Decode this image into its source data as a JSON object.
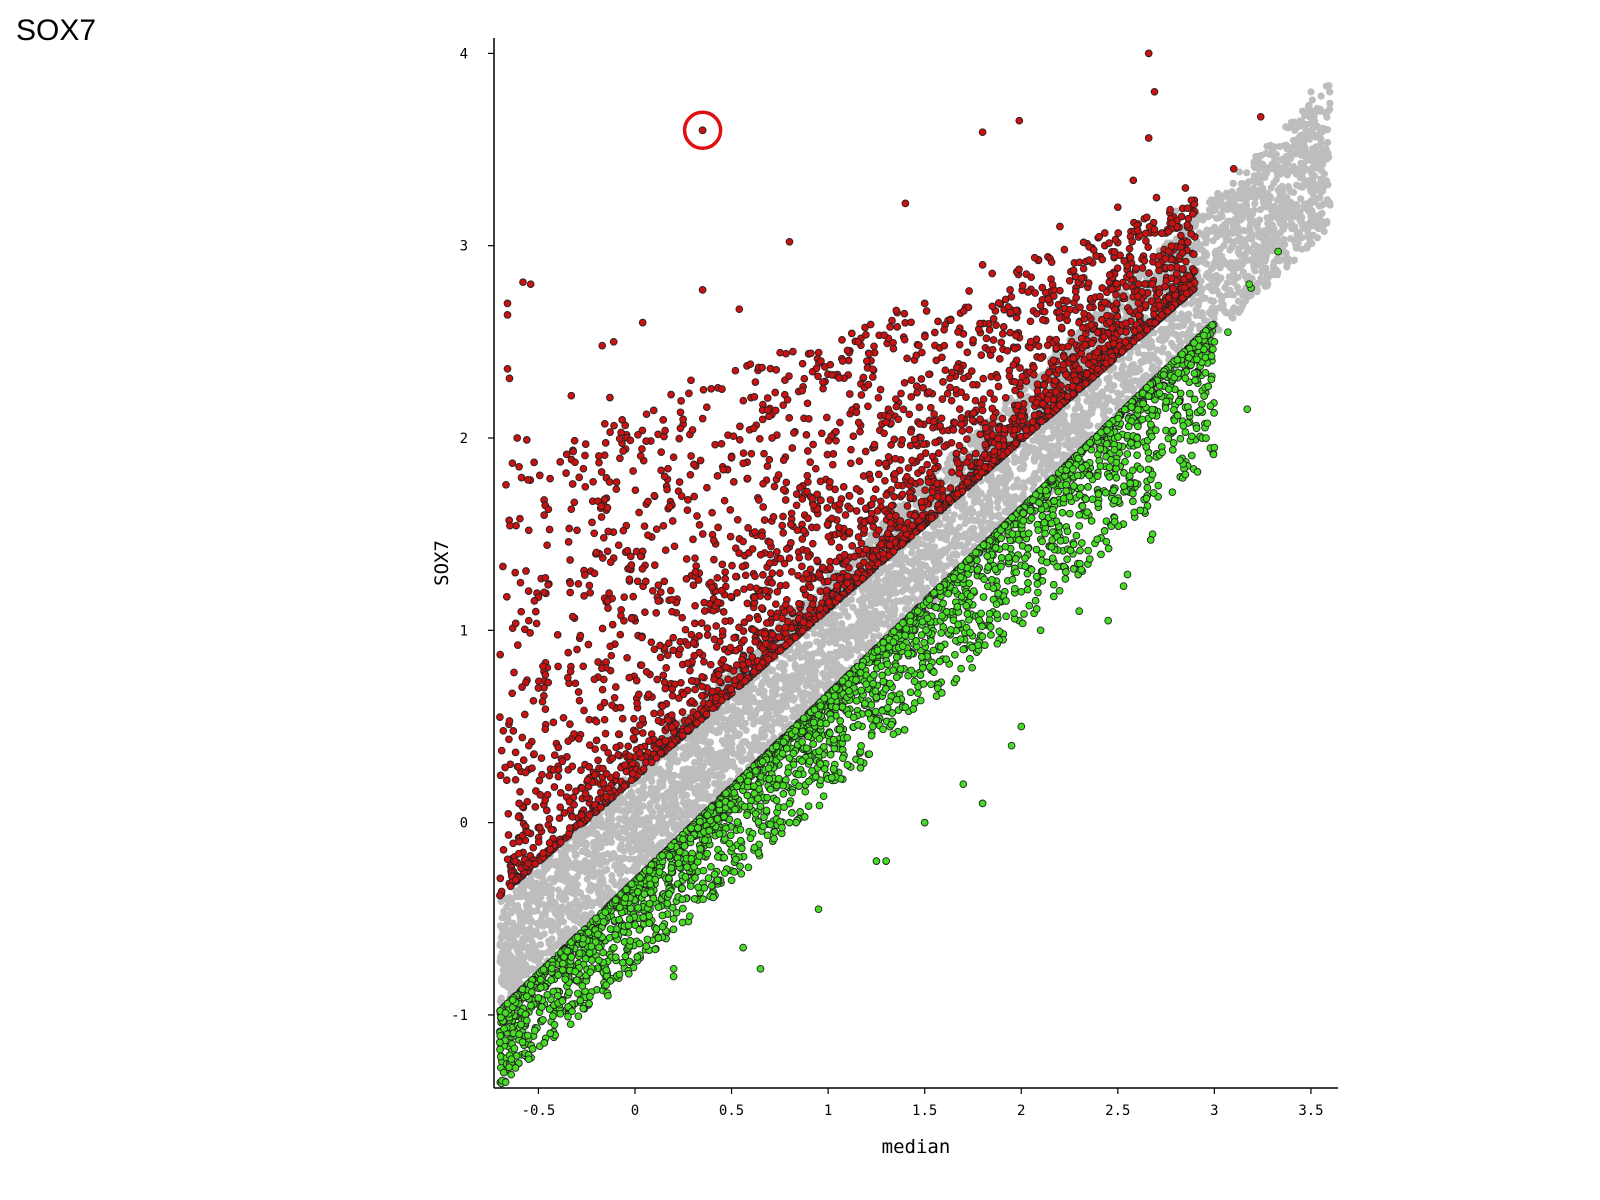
{
  "page": {
    "label": "SOX7"
  },
  "chart_data": {
    "type": "scatter",
    "title": "",
    "xlabel": "median",
    "ylabel": "SOX7",
    "xlim": [
      -0.73,
      3.64
    ],
    "ylim": [
      -1.38,
      4.08
    ],
    "x_ticks": [
      -0.5,
      0,
      0.5,
      1,
      1.5,
      2,
      2.5,
      3,
      3.5
    ],
    "x_tick_labels": [
      "-0.5",
      "0",
      "0.5",
      "1",
      "1.5",
      "2",
      "2.5",
      "3",
      "3.5"
    ],
    "y_ticks": [
      -1,
      0,
      1,
      2,
      3,
      4
    ],
    "y_tick_labels": [
      "-1",
      "0",
      "1",
      "2",
      "3",
      "4"
    ],
    "grid": false,
    "legend": "none",
    "colors": {
      "up": "#cc1111",
      "down": "#44dd22",
      "neutral": "#bdbdbd",
      "edge": "#222222",
      "highlight": "#e01010"
    },
    "series": [
      {
        "color_role": "neutral",
        "band": {
          "x_start": -0.7,
          "x_end": 3.6,
          "lower_at_start": -1.0,
          "upper_at_start": -0.4,
          "lower_at_end": 3.1,
          "upper_at_end": 3.85
        },
        "points": [
          [
            3.5,
            3.8
          ],
          [
            3.58,
            3.83
          ],
          [
            3.3,
            3.5
          ],
          [
            3.45,
            3.47
          ],
          [
            3.2,
            3.28
          ],
          [
            3.25,
            3.25
          ],
          [
            3.3,
            3.4
          ],
          [
            3.1,
            3.1
          ],
          [
            3.15,
            3.0
          ],
          [
            2.95,
            2.95
          ],
          [
            2.9,
            3.1
          ],
          [
            2.8,
            3.18
          ]
        ]
      },
      {
        "color_role": "up",
        "points": [
          [
            2.66,
            4.0
          ],
          [
            2.69,
            3.8
          ],
          [
            0.35,
            3.6
          ],
          [
            1.8,
            3.59
          ],
          [
            1.99,
            3.65
          ],
          [
            2.66,
            3.56
          ],
          [
            3.24,
            3.67
          ],
          [
            2.58,
            3.34
          ],
          [
            1.4,
            3.22
          ],
          [
            0.8,
            3.02
          ],
          [
            0.35,
            2.77
          ],
          [
            -0.58,
            2.81
          ],
          [
            -0.54,
            2.8
          ],
          [
            -0.66,
            2.7
          ],
          [
            -0.66,
            2.64
          ],
          [
            0.04,
            2.6
          ],
          [
            0.54,
            2.67
          ],
          [
            -0.17,
            2.48
          ],
          [
            -0.11,
            2.5
          ],
          [
            -0.66,
            2.36
          ],
          [
            -0.65,
            2.31
          ],
          [
            0.29,
            2.3
          ],
          [
            0.52,
            2.35
          ],
          [
            -0.33,
            2.22
          ],
          [
            -0.13,
            2.21
          ],
          [
            -0.61,
            2.0
          ],
          [
            -0.56,
            1.99
          ],
          [
            -0.32,
            1.93
          ],
          [
            0.71,
            2.0
          ],
          [
            0.2,
            1.9
          ],
          [
            -0.6,
            1.85
          ],
          [
            -0.33,
            1.63
          ],
          [
            -0.55,
            1.52
          ],
          [
            -0.62,
            1.3
          ],
          [
            -0.3,
            1.52
          ],
          [
            0.1,
            1.7
          ],
          [
            0.5,
            1.9
          ],
          [
            0.9,
            2.1
          ],
          [
            1.2,
            2.4
          ],
          [
            1.5,
            2.7
          ],
          [
            1.8,
            2.9
          ],
          [
            2.2,
            3.1
          ],
          [
            2.5,
            3.2
          ],
          [
            2.7,
            3.25
          ],
          [
            3.1,
            3.4
          ],
          [
            2.85,
            3.3
          ],
          [
            -0.55,
            0.4
          ],
          [
            -0.6,
            0.1
          ],
          [
            -0.62,
            -0.2
          ],
          [
            -0.5,
            0.7
          ],
          [
            -0.3,
            0.9
          ]
        ],
        "band": {
          "x_start": -0.7,
          "x_end": 2.9,
          "lower_at_start": -0.38,
          "upper_at_start": 1.9,
          "lower_at_end": 2.78,
          "upper_at_end": 3.25
        }
      },
      {
        "color_role": "down",
        "points": [
          [
            3.33,
            2.97
          ],
          [
            3.19,
            2.78
          ],
          [
            3.18,
            2.8
          ],
          [
            3.07,
            2.55
          ],
          [
            3.0,
            2.5
          ],
          [
            3.17,
            2.15
          ],
          [
            3.0,
            1.95
          ],
          [
            2.68,
            1.81
          ],
          [
            2.85,
            1.81
          ],
          [
            2.68,
            1.5
          ],
          [
            2.67,
            1.47
          ],
          [
            2.55,
            1.29
          ],
          [
            2.53,
            1.23
          ],
          [
            2.45,
            1.05
          ],
          [
            2.3,
            1.1
          ],
          [
            2.1,
            1.0
          ],
          [
            2.0,
            0.5
          ],
          [
            1.95,
            0.4
          ],
          [
            1.8,
            0.1
          ],
          [
            1.7,
            0.2
          ],
          [
            1.5,
            0.0
          ],
          [
            1.3,
            -0.2
          ],
          [
            1.25,
            -0.2
          ],
          [
            0.95,
            -0.45
          ],
          [
            0.65,
            -0.76
          ],
          [
            0.56,
            -0.65
          ],
          [
            0.2,
            -0.76
          ],
          [
            0.2,
            -0.8
          ],
          [
            -0.08,
            -0.79
          ],
          [
            -0.14,
            -0.9
          ],
          [
            -0.64,
            -1.23
          ],
          [
            -0.68,
            -1.3
          ],
          [
            -0.67,
            -1.35
          ],
          [
            -0.55,
            -1.23
          ],
          [
            2.9,
            2.3
          ],
          [
            2.6,
            2.0
          ],
          [
            2.3,
            1.6
          ],
          [
            2.0,
            1.2
          ],
          [
            1.7,
            0.9
          ],
          [
            1.4,
            0.6
          ],
          [
            1.1,
            0.3
          ],
          [
            0.8,
            0.0
          ],
          [
            0.5,
            -0.3
          ],
          [
            0.2,
            -0.5
          ],
          [
            -0.1,
            -0.7
          ],
          [
            -0.4,
            -0.9
          ],
          [
            -0.6,
            -1.1
          ]
        ],
        "band": {
          "x_start": -0.7,
          "x_end": 3.0,
          "lower_at_start": -1.38,
          "upper_at_start": -0.98,
          "lower_at_end": 1.9,
          "upper_at_end": 2.6
        }
      }
    ],
    "highlight_point": [
      0.35,
      3.6
    ]
  }
}
